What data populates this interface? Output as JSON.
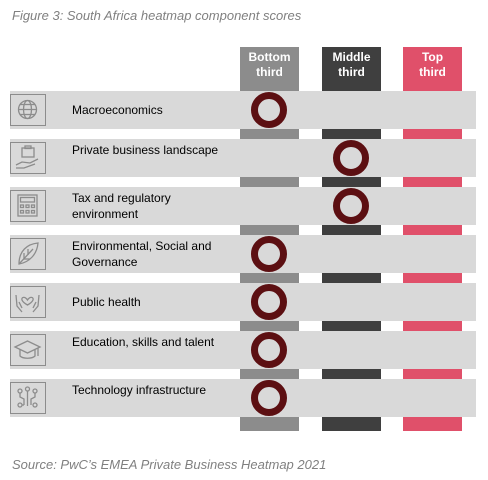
{
  "title": "Figure 3:  South Africa heatmap component scores",
  "source": "Source: PwC’s EMEA Private Business Heatmap 2021",
  "colors": {
    "bottom": "#8c8c8c",
    "middle": "#3f3f3f",
    "top": "#e0506a",
    "band": "#d9d9d9",
    "marker": "#5c0f12"
  },
  "chart_data": {
    "type": "table",
    "columns": [
      "Bottom third",
      "Middle third",
      "Top third"
    ],
    "column_lines": [
      [
        "Bottom",
        "third"
      ],
      [
        "Middle",
        "third"
      ],
      [
        "Top",
        "third"
      ]
    ],
    "rows": [
      {
        "label": "Macroeconomics",
        "icon": "globe-icon",
        "category": "Bottom third"
      },
      {
        "label": "Private business landscape",
        "icon": "briefcase-hand-icon",
        "category": "Middle third"
      },
      {
        "label": "Tax and regulatory environment",
        "icon": "calculator-icon",
        "category": "Middle third"
      },
      {
        "label": "Environmental, Social and Governance",
        "icon": "leaf-icon",
        "category": "Bottom third"
      },
      {
        "label": "Public health",
        "icon": "heart-hands-icon",
        "category": "Bottom third"
      },
      {
        "label": "Education, skills and talent",
        "icon": "graduation-cap-icon",
        "category": "Bottom third"
      },
      {
        "label": "Technology infrastructure",
        "icon": "circuit-icon",
        "category": "Bottom third"
      }
    ]
  }
}
